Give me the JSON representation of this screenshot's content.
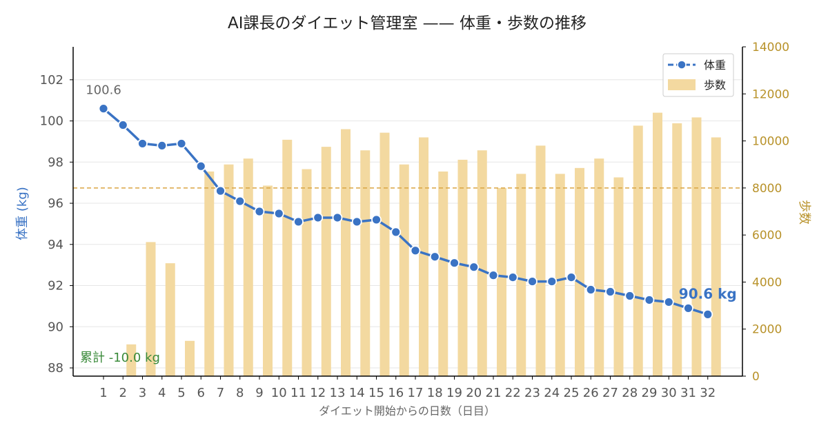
{
  "chart_data": {
    "type": "bar+line",
    "title": "AI課長のダイエット管理室 —— 体重・歩数の推移",
    "xlabel": "ダイエット開始からの日数（日目）",
    "ylabel_left": "体重 (kg)",
    "ylabel_right": "歩数",
    "x": [
      1,
      2,
      3,
      4,
      5,
      6,
      7,
      8,
      9,
      10,
      11,
      12,
      13,
      14,
      15,
      16,
      17,
      18,
      19,
      20,
      21,
      22,
      23,
      24,
      25,
      26,
      27,
      28,
      29,
      30,
      31,
      32
    ],
    "x_tick_labels": [
      "1",
      "2",
      "3",
      "4",
      "5",
      "6",
      "7",
      "8",
      "9",
      "10",
      "11",
      "12",
      "13",
      "14",
      "15",
      "16",
      "17",
      "18",
      "19",
      "20",
      "21",
      "22",
      "23",
      "24",
      "25",
      "26",
      "27",
      "28",
      "29",
      "30",
      "31",
      "32"
    ],
    "series": [
      {
        "name": "体重",
        "kind": "line",
        "axis": "left",
        "color": "#3a73c4",
        "values": [
          100.6,
          99.8,
          98.9,
          98.8,
          98.9,
          97.8,
          96.6,
          96.1,
          95.6,
          95.5,
          95.1,
          95.3,
          95.3,
          95.1,
          95.2,
          94.6,
          93.7,
          93.4,
          93.1,
          92.9,
          92.5,
          92.4,
          92.2,
          92.2,
          92.4,
          91.8,
          91.7,
          91.5,
          91.3,
          91.2,
          90.9,
          90.6
        ]
      },
      {
        "name": "歩数",
        "kind": "bar",
        "axis": "right",
        "color": "#f3d9a0",
        "values": [
          0,
          1350,
          5700,
          4800,
          1500,
          8700,
          9000,
          9250,
          8100,
          10050,
          8800,
          9750,
          10500,
          9600,
          10350,
          9000,
          10150,
          8700,
          9200,
          9600,
          8000,
          8600,
          9800,
          8600,
          8850,
          9250,
          8450,
          10650,
          11200,
          10750,
          11000,
          10150
        ]
      }
    ],
    "ylim_left": [
      87.6,
      103.6
    ],
    "yticks_left": [
      88,
      90,
      92,
      94,
      96,
      98,
      100,
      102
    ],
    "ylim_right": [
      0,
      14000
    ],
    "yticks_right": [
      0,
      2000,
      4000,
      6000,
      8000,
      10000,
      12000,
      14000
    ],
    "reference_line": {
      "axis": "right",
      "value": 8000,
      "color": "#d9a441",
      "style": "dashed"
    },
    "annotations": {
      "start_label": "100.6",
      "end_label": "90.6 kg",
      "total_label": "累計 -10.0 kg",
      "total_color": "#3a8a3a"
    },
    "legend": {
      "placement": "top-right"
    },
    "grid": "horizontal"
  }
}
